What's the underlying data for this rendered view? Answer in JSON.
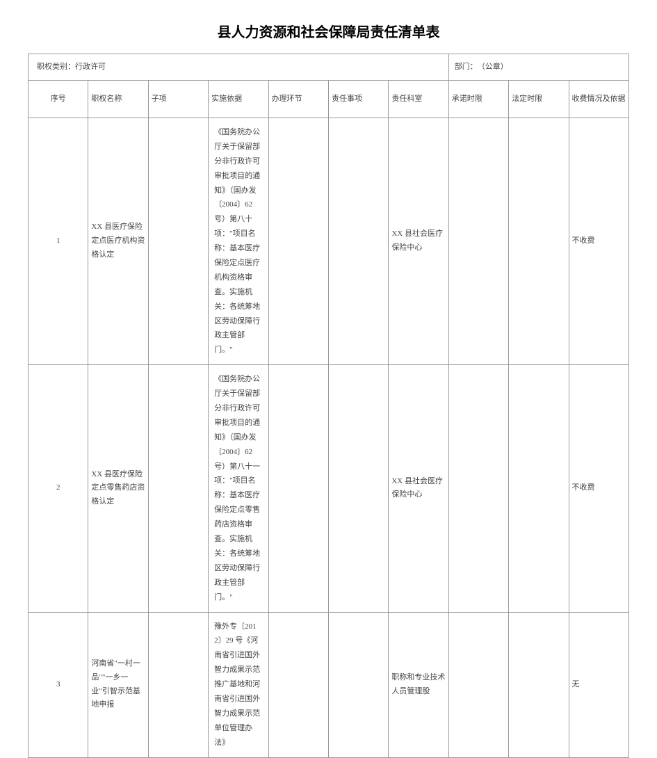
{
  "title": "县人力资源和社会保障局责任清单表",
  "meta": {
    "category_label": "职权类别：行政许可",
    "dept_label": "部门：　（公章）"
  },
  "headers": {
    "seq": "序号",
    "name": "职权名称",
    "sub": "子项",
    "basis": "实施依据",
    "step": "办理环节",
    "matter": "责任事项",
    "dept": "责任科室",
    "prom": "承诺时限",
    "legal": "法定时限",
    "fee": "收费情况及依据"
  },
  "rows": [
    {
      "seq": "1",
      "name": "XX 县医疗保险定点医疗机构资格认定",
      "sub": "",
      "basis": "《国务院办公厅关于保留部分非行政许可审批项目的通知》（国办发〔2004〕62 号）第八十项：\"项目名称：基本医疗保险定点医疗机构资格审查。实施机关：各统筹地区劳动保障行政主管部门。\"",
      "step": "",
      "matter": "",
      "dept": "XX 县社会医疗保险中心",
      "prom": "",
      "legal": "",
      "fee": "不收费"
    },
    {
      "seq": "2",
      "name": "XX 县医疗保险定点零售药店资格认定",
      "sub": "",
      "basis": "《国务院办公厅关于保留部分非行政许可审批项目的通知》（国办发〔2004〕62 号）第八十一项：\"项目名称：基本医疗保险定点零售药店资格审查。实施机关：各统筹地区劳动保障行政主管部门。\"",
      "step": "",
      "matter": "",
      "dept": "XX 县社会医疗保险中心",
      "prom": "",
      "legal": "",
      "fee": "不收费"
    },
    {
      "seq": "3",
      "name": "河南省\"一村一品\"\"一乡一业\"引智示范基地申报",
      "sub": "",
      "basis": "豫外专〔2012〕29 号《河南省引进国外智力成果示范推广基地和河南省引进国外智力成果示范单位管理办法》",
      "step": "",
      "matter": "",
      "dept": "职称和专业技术人员管理股",
      "prom": "",
      "legal": "",
      "fee": "无"
    }
  ]
}
